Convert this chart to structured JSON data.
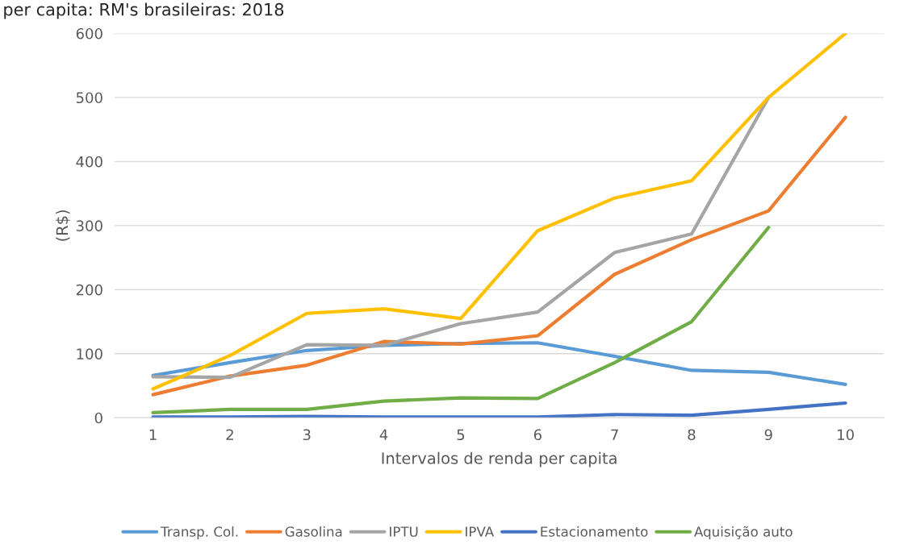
{
  "chart_data": {
    "type": "line",
    "title": "per capita: RM's brasileiras: 2018",
    "xlabel": "Intervalos de renda per capita",
    "ylabel": "(R$)",
    "categories": [
      "1",
      "2",
      "3",
      "4",
      "5",
      "6",
      "7",
      "8",
      "9",
      "10"
    ],
    "series": [
      {
        "name": "Transp. Col.",
        "color": "#5b9bd5",
        "values": [
          66,
          86,
          105,
          113,
          116,
          117,
          96,
          74,
          71,
          52
        ]
      },
      {
        "name": "Gasolina",
        "color": "#ed7d31",
        "values": [
          36,
          65,
          82,
          119,
          115,
          128,
          224,
          278,
          323,
          469
        ]
      },
      {
        "name": "IPTU",
        "color": "#a5a5a5",
        "values": [
          64,
          63,
          114,
          113,
          147,
          165,
          258,
          287,
          500,
          null
        ]
      },
      {
        "name": "IPVA",
        "color": "#ffc000",
        "values": [
          45,
          97,
          163,
          170,
          155,
          292,
          343,
          370,
          500,
          600
        ]
      },
      {
        "name": "Estacionamento",
        "color": "#4472c4",
        "values": [
          1,
          1,
          2,
          1,
          1,
          1,
          5,
          4,
          13,
          23
        ]
      },
      {
        "name": "Aquisição auto",
        "color": "#70ad47",
        "values": [
          8,
          13,
          13,
          26,
          31,
          30,
          86,
          150,
          297,
          null
        ]
      }
    ],
    "ylim": [
      0,
      600
    ],
    "yticks": [
      0,
      100,
      200,
      300,
      400,
      500,
      600
    ],
    "grid": "y",
    "legend": "bottom",
    "marker": "none",
    "line_style": "solid"
  }
}
